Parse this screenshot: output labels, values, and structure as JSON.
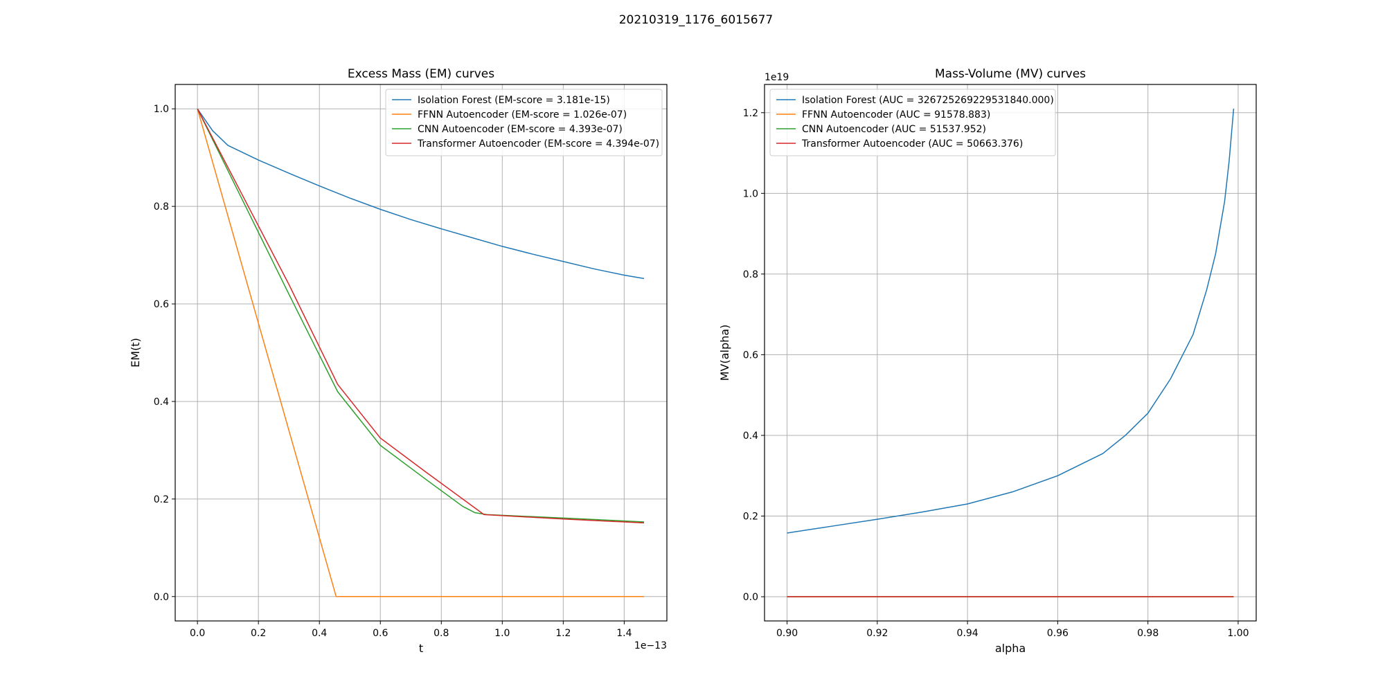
{
  "figure": {
    "suptitle": "20210319_1176_6015677"
  },
  "chart_data": [
    {
      "type": "line",
      "title": "Excess Mass (EM) curves",
      "xlabel": "t",
      "ylabel": "EM(t)",
      "x_offset_text": "1e−13",
      "x_scale_exponent": -13,
      "xlim": [
        -0.073,
        1.54
      ],
      "ylim": [
        -0.05,
        1.05
      ],
      "xticks": [
        0.0,
        0.2,
        0.4,
        0.6,
        0.8,
        1.0,
        1.2,
        1.4
      ],
      "xtick_labels": [
        "0.0",
        "0.2",
        "0.4",
        "0.6",
        "0.8",
        "1.0",
        "1.2",
        "1.4"
      ],
      "yticks": [
        0.0,
        0.2,
        0.4,
        0.6,
        0.8,
        1.0
      ],
      "ytick_labels": [
        "0.0",
        "0.2",
        "0.4",
        "0.6",
        "0.8",
        "1.0"
      ],
      "grid": true,
      "legend_position": "top-right",
      "series": [
        {
          "name": "Isolation Forest (EM-score = 3.181e-15)",
          "color": "#1f77b4",
          "x": [
            0.0,
            0.05,
            0.1,
            0.2,
            0.3,
            0.4,
            0.5,
            0.6,
            0.7,
            0.8,
            0.9,
            1.0,
            1.1,
            1.2,
            1.3,
            1.4,
            1.465
          ],
          "y": [
            1.0,
            0.955,
            0.925,
            0.895,
            0.868,
            0.842,
            0.817,
            0.794,
            0.773,
            0.754,
            0.736,
            0.718,
            0.702,
            0.687,
            0.672,
            0.659,
            0.652
          ]
        },
        {
          "name": "FFNN Autoencoder (EM-score = 1.026e-07)",
          "color": "#ff7f0e",
          "x": [
            0.0,
            0.455,
            0.6,
            1.0,
            1.465
          ],
          "y": [
            1.0,
            0.0,
            0.0,
            0.0,
            0.0
          ]
        },
        {
          "name": "CNN Autoencoder (EM-score = 4.393e-07)",
          "color": "#2ca02c",
          "x": [
            0.0,
            0.15,
            0.3,
            0.46,
            0.6,
            0.75,
            0.87,
            0.91,
            0.95,
            1.2,
            1.465
          ],
          "y": [
            1.0,
            0.81,
            0.62,
            0.42,
            0.31,
            0.24,
            0.185,
            0.172,
            0.168,
            0.161,
            0.153
          ]
        },
        {
          "name": "Transformer Autoencoder (EM-score = 4.394e-07)",
          "color": "#d62728",
          "x": [
            0.0,
            0.15,
            0.3,
            0.46,
            0.6,
            0.75,
            0.94,
            1.2,
            1.465
          ],
          "y": [
            1.0,
            0.82,
            0.64,
            0.435,
            0.325,
            0.255,
            0.168,
            0.159,
            0.151
          ]
        }
      ]
    },
    {
      "type": "line",
      "title": "Mass-Volume (MV) curves",
      "xlabel": "alpha",
      "ylabel": "MV(alpha)",
      "y_offset_text": "1e19",
      "y_scale_exponent": 19,
      "xlim": [
        0.895,
        1.004
      ],
      "ylim": [
        -0.06,
        1.27
      ],
      "xticks": [
        0.9,
        0.92,
        0.94,
        0.96,
        0.98,
        1.0
      ],
      "xtick_labels": [
        "0.90",
        "0.92",
        "0.94",
        "0.96",
        "0.98",
        "1.00"
      ],
      "yticks": [
        0.0,
        0.2,
        0.4,
        0.6,
        0.8,
        1.0,
        1.2
      ],
      "ytick_labels": [
        "0.0",
        "0.2",
        "0.4",
        "0.6",
        "0.8",
        "1.0",
        "1.2"
      ],
      "grid": true,
      "legend_position": "top-left",
      "series": [
        {
          "name": "Isolation Forest (AUC = 326725269229531840.000)",
          "color": "#1f77b4",
          "x": [
            0.9,
            0.91,
            0.92,
            0.93,
            0.94,
            0.95,
            0.96,
            0.97,
            0.975,
            0.98,
            0.985,
            0.99,
            0.993,
            0.995,
            0.997,
            0.998,
            0.999
          ],
          "y": [
            0.158,
            0.175,
            0.192,
            0.21,
            0.23,
            0.26,
            0.3,
            0.355,
            0.4,
            0.455,
            0.54,
            0.65,
            0.76,
            0.85,
            0.98,
            1.08,
            1.21
          ]
        },
        {
          "name": "FFNN Autoencoder (AUC = 91578.883)",
          "color": "#ff7f0e",
          "x": [
            0.9,
            0.999
          ],
          "y": [
            0.0,
            0.0
          ]
        },
        {
          "name": "CNN Autoencoder (AUC = 51537.952)",
          "color": "#2ca02c",
          "x": [
            0.9,
            0.999
          ],
          "y": [
            0.0,
            0.0
          ]
        },
        {
          "name": "Transformer Autoencoder (AUC = 50663.376)",
          "color": "#d62728",
          "x": [
            0.9,
            0.999
          ],
          "y": [
            0.0,
            0.0
          ]
        }
      ]
    }
  ]
}
